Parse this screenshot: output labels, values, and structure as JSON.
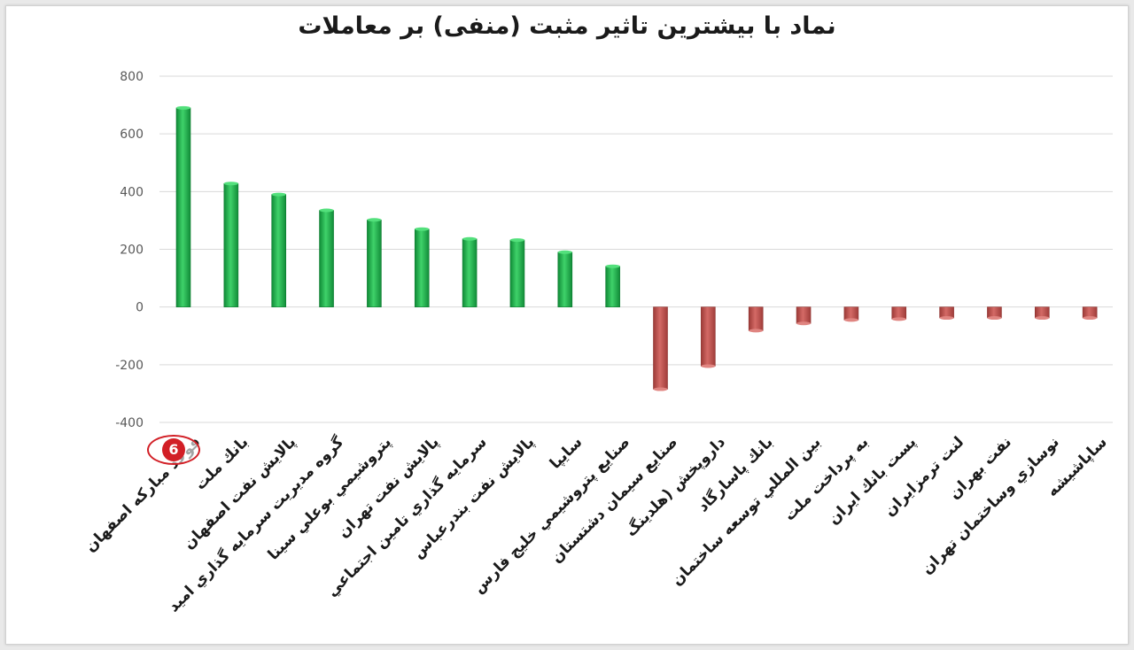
{
  "chart_data": {
    "type": "bar",
    "title": "نماد با بیشترین تاثیر مثبت (منفی) بر معاملات",
    "xlabel": "",
    "ylabel": "",
    "ylim": [
      -400,
      800
    ],
    "yticks": [
      800,
      600,
      400,
      200,
      0,
      -200,
      -400
    ],
    "grid": true,
    "legend": "none",
    "positive_color": "#1fb34f",
    "negative_color": "#c0504d",
    "categories": [
      "فولاد مباركه اصفهان",
      "بانك ملت",
      "پالايش نفت اصفهان",
      "گروه مديريت سرمايه گذاري اميد",
      "پتروشيمي بوعلي سينا",
      "پالايش نفت تهران",
      "سرمايه گذاري تامين اجتماعي",
      "پالايش نفت بندرعباس",
      "سايپا",
      "صنايع پتروشيمي خليج فارس",
      "صنايع سيمان دشتستان",
      "داروپخش (هلدينگ",
      "بانك پاسارگاد",
      "بين المللي توسعه ساختمان",
      "به پرداخت ملت",
      "پست بانك ايران",
      "لنت ترمزايران",
      "نفت بهران",
      "نوسازي وساختمان تهران",
      "ساپاشيشه"
    ],
    "values": [
      690,
      428,
      390,
      335,
      302,
      270,
      236,
      232,
      190,
      141,
      -285,
      -205,
      -82,
      -57,
      -45,
      -42,
      -38,
      -38,
      -38,
      -38
    ]
  },
  "watermark": {
    "icon": "brand-logo-icon",
    "text": "6",
    "color": "#d21f26"
  }
}
